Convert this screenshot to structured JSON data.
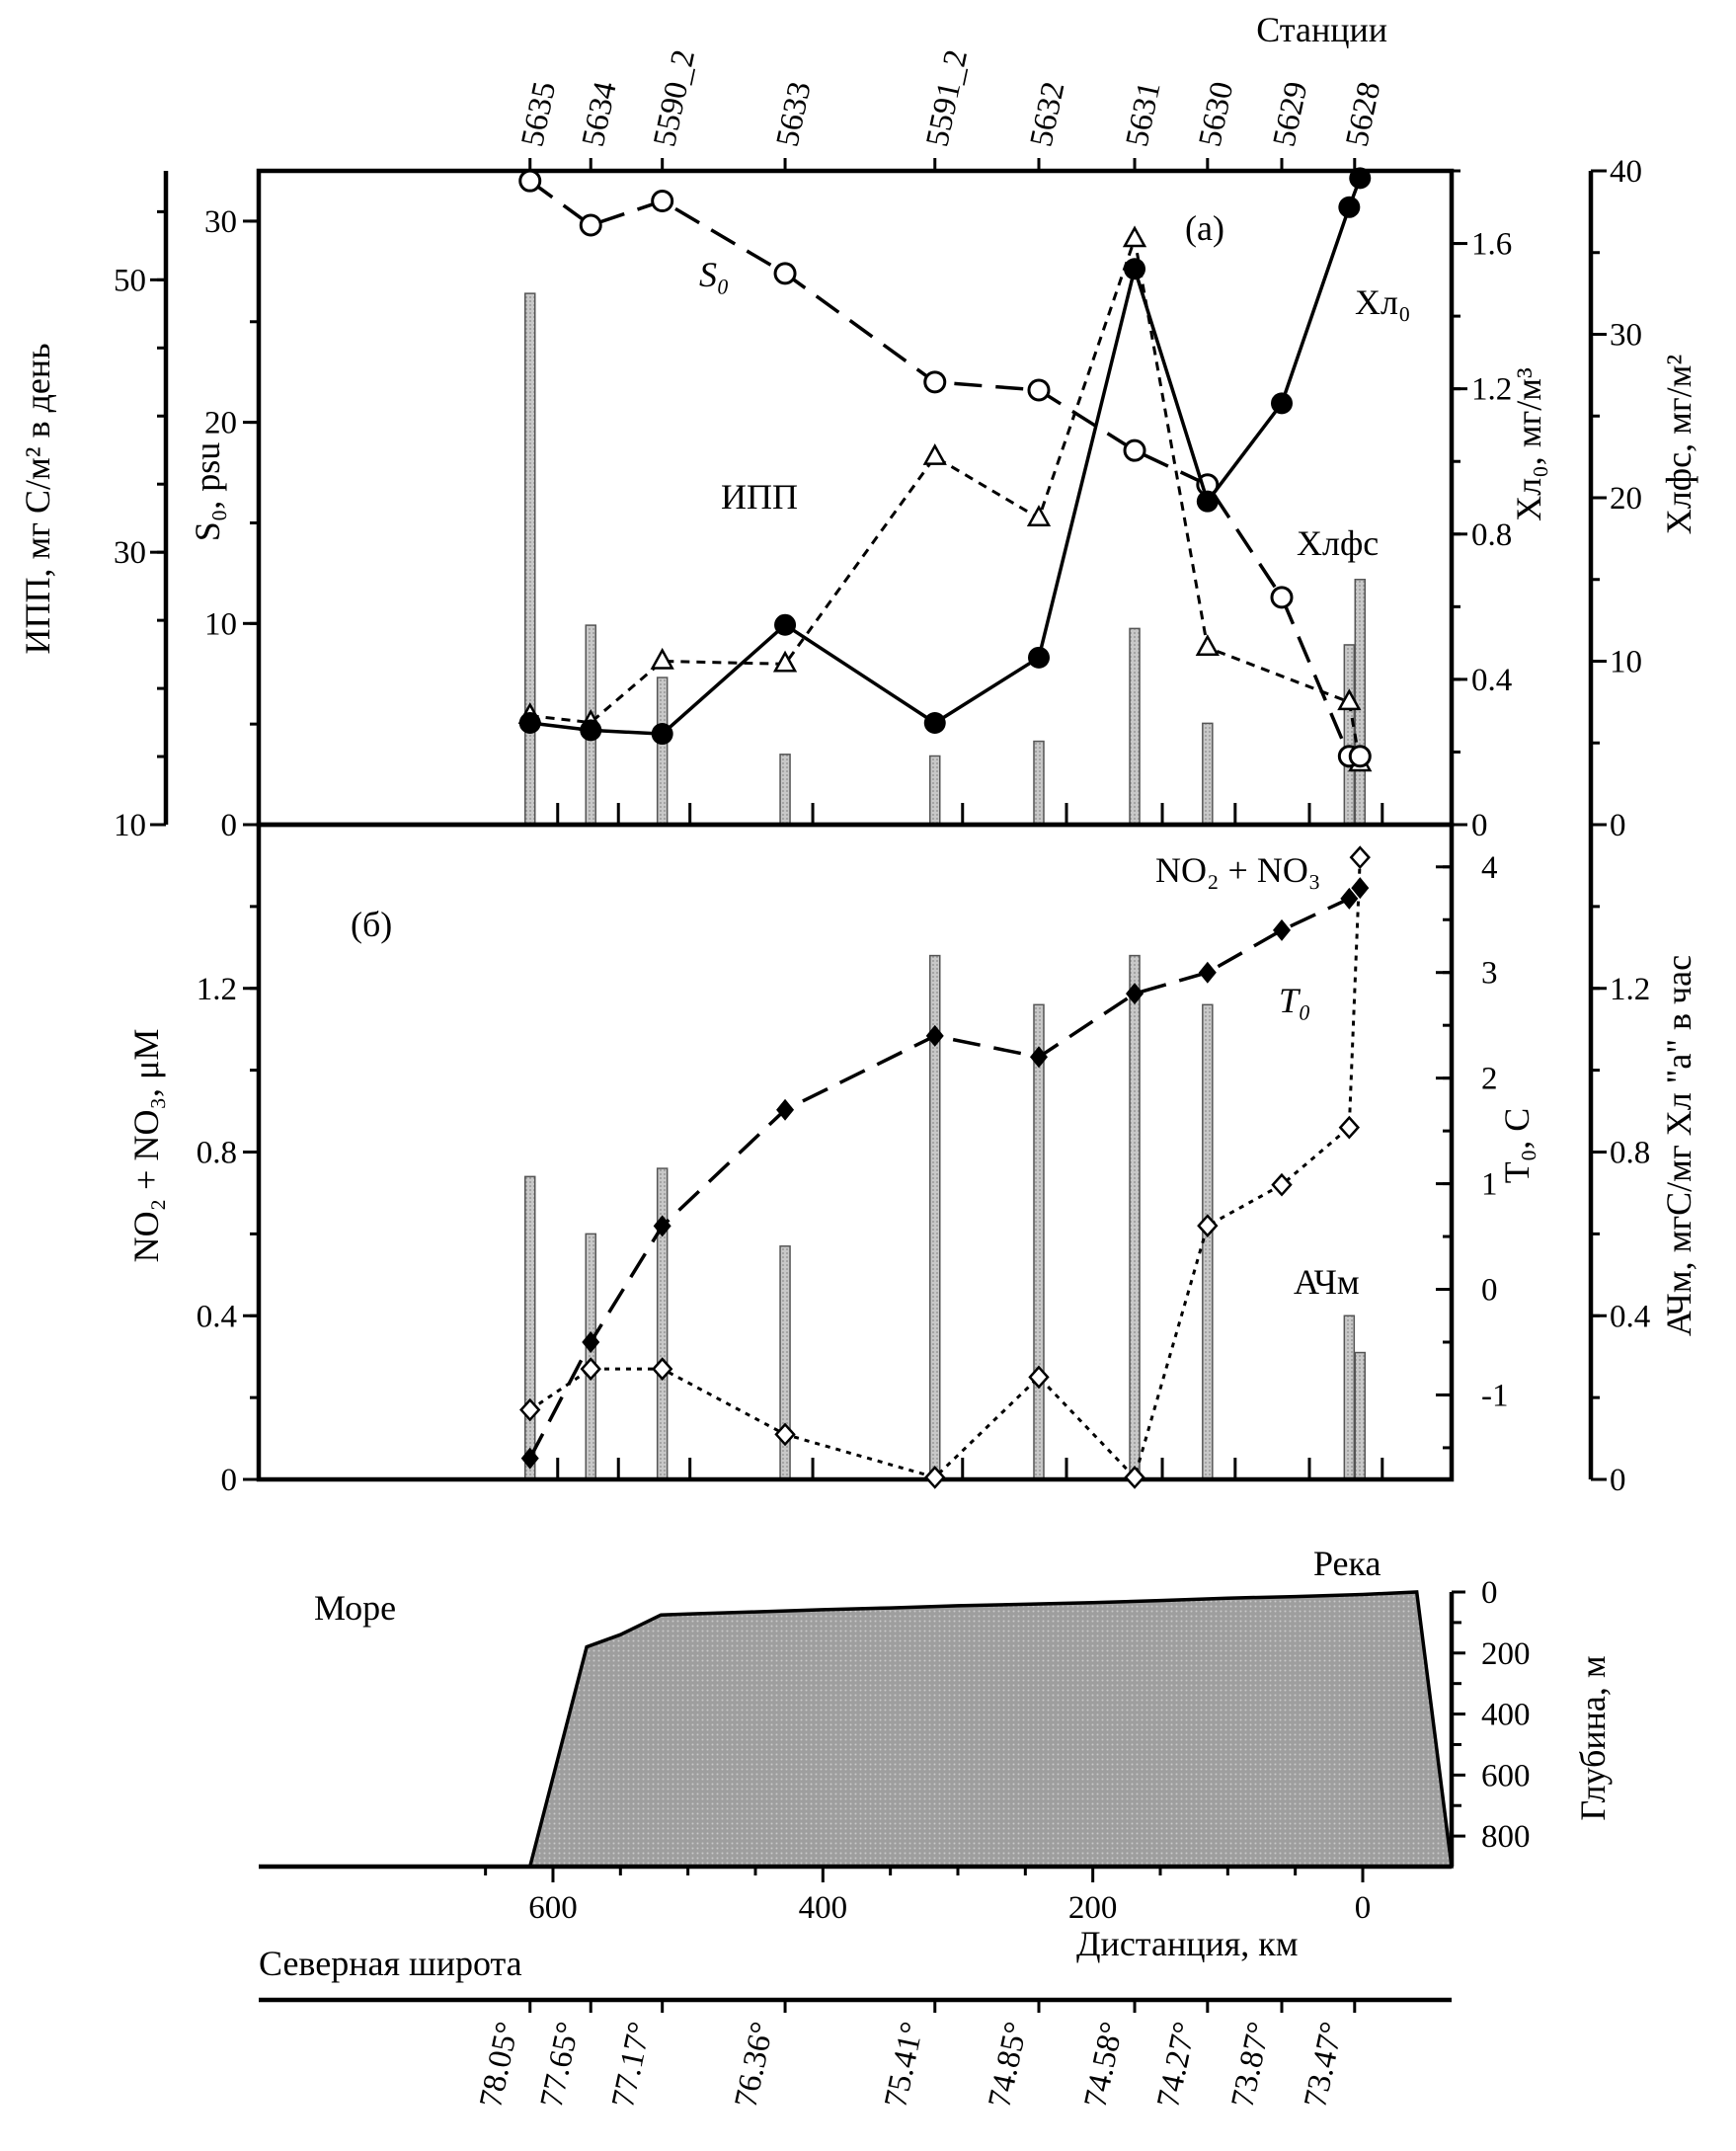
{
  "top_axis": {
    "title": "Станции",
    "stations": [
      {
        "label": "5635",
        "km": 617
      },
      {
        "label": "5634",
        "km": 572
      },
      {
        "label": "5590_2",
        "km": 519
      },
      {
        "label": "5633",
        "km": 428
      },
      {
        "label": "5591_2",
        "km": 317
      },
      {
        "label": "5632",
        "km": 240
      },
      {
        "label": "5631",
        "km": 169
      },
      {
        "label": "5630",
        "km": 115
      },
      {
        "label": "5629",
        "km": 60
      },
      {
        "label": "5628",
        "km": 6
      }
    ]
  },
  "bottom_axis": {
    "title": "Северная широта",
    "latitudes": [
      {
        "label": "78.05°",
        "km": 617
      },
      {
        "label": "77.65°",
        "km": 572
      },
      {
        "label": "77.17°",
        "km": 519
      },
      {
        "label": "76.36°",
        "km": 428
      },
      {
        "label": "75.41°",
        "km": 317
      },
      {
        "label": "74.85°",
        "km": 240
      },
      {
        "label": "74.58°",
        "km": 169
      },
      {
        "label": "74.27°",
        "km": 115
      },
      {
        "label": "73.87°",
        "km": 60
      },
      {
        "label": "73.47°",
        "km": 6
      }
    ]
  },
  "chart_data": [
    {
      "type": "line",
      "panel_label": "(а)",
      "xlabel": "",
      "xlim": [
        660,
        -40
      ],
      "axes": {
        "ipp": {
          "label": "ИПП, мг С/м² в день",
          "ylim": [
            10,
            58
          ],
          "ticks": [
            "10",
            "30",
            "50"
          ],
          "tick_values": [
            10,
            30,
            50
          ]
        },
        "salinity": {
          "label": "S₀, psu",
          "ylim": [
            0,
            32.5
          ],
          "ticks": [
            "0",
            "10",
            "20",
            "30"
          ],
          "tick_values": [
            0,
            10,
            20,
            30
          ]
        },
        "chl_surface": {
          "label": "Хл₀, мг/м³",
          "ylim": [
            0,
            1.8
          ],
          "ticks": [
            "0",
            "0.4",
            "0.8",
            "1.2",
            "1.6"
          ],
          "tick_values": [
            0,
            0.4,
            0.8,
            1.2,
            1.6
          ]
        },
        "chl_column": {
          "label": "Хлфс, мг/м²",
          "ylim": [
            0,
            40
          ],
          "ticks": [
            "0",
            "10",
            "20",
            "30",
            "40"
          ],
          "tick_values": [
            0,
            10,
            20,
            30,
            40
          ]
        }
      },
      "series": [
        {
          "name": "S₀",
          "axis": "salinity",
          "style": "dashed",
          "marker": "open-circle",
          "x": [
            617,
            572,
            519,
            428,
            317,
            240,
            169,
            115,
            60,
            10,
            2
          ],
          "values": [
            32.0,
            29.8,
            31.0,
            27.4,
            22.0,
            21.6,
            18.6,
            16.9,
            11.3,
            3.4,
            3.4
          ]
        },
        {
          "name": "ИПП",
          "axis": "ipp",
          "style": "short-dashed",
          "marker": "open-triangle",
          "x": [
            617,
            572,
            519,
            428,
            317,
            240,
            169,
            115,
            10,
            2
          ],
          "values": [
            18.0,
            17.5,
            22.0,
            21.8,
            37.0,
            32.5,
            53.0,
            23.0,
            19.0,
            14.5
          ]
        },
        {
          "name": "Хл₀",
          "axis": "chl_surface",
          "style": "solid",
          "marker": "filled-circle",
          "x": [
            617,
            572,
            519,
            428,
            317,
            240,
            169,
            115,
            60,
            10,
            2
          ],
          "values": [
            0.28,
            0.26,
            0.25,
            0.55,
            0.28,
            0.46,
            1.53,
            0.89,
            1.16,
            1.7,
            1.78
          ]
        },
        {
          "name": "Хлфс",
          "axis": "chl_column",
          "style": "bars",
          "x": [
            617,
            572,
            519,
            428,
            317,
            240,
            169,
            115,
            10,
            2
          ],
          "values": [
            32.5,
            12.2,
            9.0,
            4.3,
            4.2,
            5.1,
            12.0,
            6.2,
            11.0,
            15.0
          ]
        }
      ],
      "annotations": [
        "S₀",
        "ИПП",
        "Хл₀",
        "Хлфс"
      ]
    },
    {
      "type": "line",
      "panel_label": "(б)",
      "xlabel": "",
      "xlim": [
        660,
        -40
      ],
      "axes": {
        "nutrients": {
          "label": "NO₂ + NO₃, μM",
          "ylim": [
            0,
            1.6
          ],
          "ticks": [
            "0",
            "0.4",
            "0.8",
            "1.2"
          ],
          "tick_values": [
            0,
            0.4,
            0.8,
            1.2
          ]
        },
        "temperature": {
          "label": "T₀, C",
          "ylim": [
            -1.8,
            4.4
          ],
          "ticks": [
            "-1",
            "0",
            "1",
            "2",
            "3",
            "4"
          ],
          "tick_values": [
            -1,
            0,
            1,
            2,
            3,
            4
          ]
        },
        "assimilation": {
          "label": "АЧм, мгС/мг Хл \"а\" в час",
          "ylim": [
            0,
            1.6
          ],
          "ticks": [
            "0",
            "0.4",
            "0.8",
            "1.2"
          ],
          "tick_values": [
            0,
            0.4,
            0.8,
            1.2
          ]
        }
      },
      "series": [
        {
          "name": "T₀",
          "axis": "temperature",
          "style": "long-dashed",
          "marker": "filled-diamond",
          "x": [
            617,
            572,
            519,
            428,
            317,
            240,
            169,
            115,
            60,
            10,
            2
          ],
          "values": [
            -1.6,
            -0.5,
            0.6,
            1.7,
            2.4,
            2.2,
            2.8,
            3.0,
            3.4,
            3.7,
            3.8
          ]
        },
        {
          "name": "NO₂ + NO₃",
          "axis": "nutrients",
          "style": "dotted",
          "marker": "open-diamond",
          "x": [
            617,
            572,
            519,
            428,
            317,
            240,
            169,
            115,
            60,
            10,
            2
          ],
          "values": [
            0.17,
            0.27,
            0.27,
            0.11,
            0.005,
            0.25,
            0.005,
            0.62,
            0.72,
            0.86,
            1.52
          ]
        },
        {
          "name": "АЧм",
          "axis": "assimilation",
          "style": "bars",
          "x": [
            617,
            572,
            519,
            428,
            317,
            240,
            169,
            115,
            10,
            2
          ],
          "values": [
            0.74,
            0.6,
            0.76,
            0.57,
            1.28,
            1.16,
            1.28,
            1.16,
            0.4,
            0.31
          ]
        }
      ],
      "annotations": [
        "NO₂ + NO₃",
        "T₀",
        "АЧм"
      ]
    },
    {
      "type": "area",
      "xlabel": "Дистанция, км",
      "ylabel": "Глубина, м",
      "xlim": [
        660,
        -40
      ],
      "x_ticks": [
        "600",
        "400",
        "200",
        "0"
      ],
      "x_tick_values": [
        600,
        400,
        200,
        0
      ],
      "ylim": [
        900,
        0
      ],
      "y_ticks": [
        "0",
        "200",
        "400",
        "600",
        "800"
      ],
      "y_tick_values": [
        0,
        200,
        400,
        600,
        800
      ],
      "depth_profile": {
        "x": [
          617,
          575,
          550,
          520,
          500,
          450,
          400,
          350,
          300,
          250,
          200,
          150,
          100,
          50,
          0,
          -40
        ],
        "values": [
          900,
          180,
          140,
          75,
          72,
          65,
          58,
          52,
          45,
          40,
          35,
          28,
          20,
          15,
          8,
          0
        ]
      },
      "annotations": [
        "Море",
        "Река"
      ]
    }
  ]
}
